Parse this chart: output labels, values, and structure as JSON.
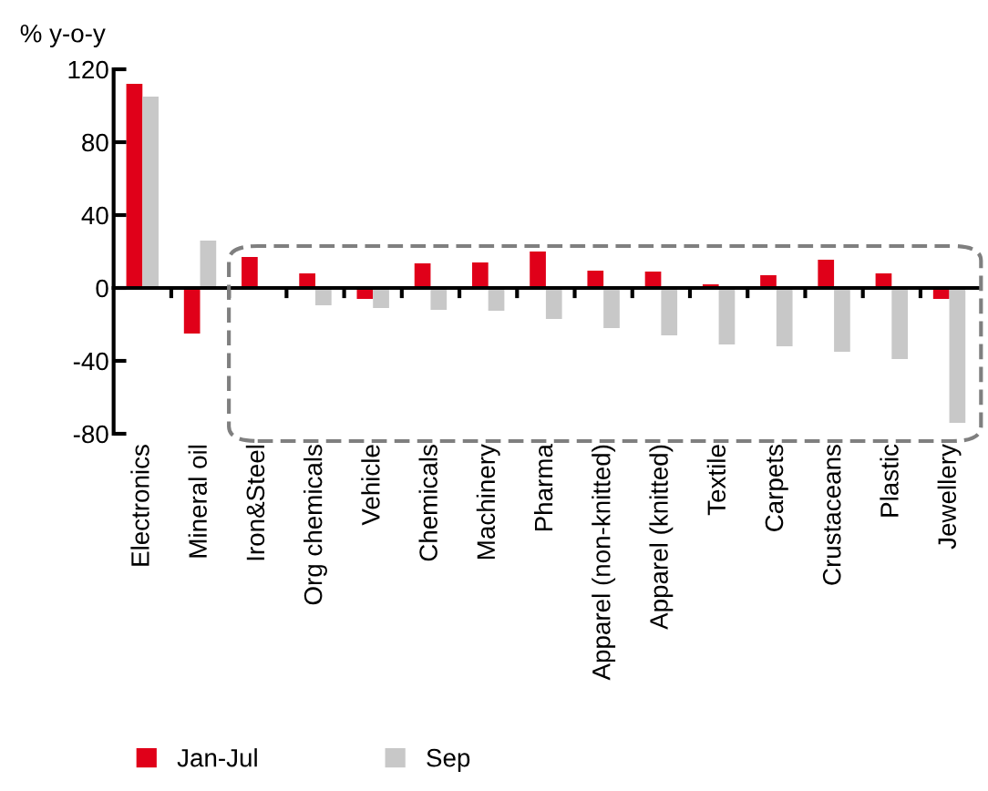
{
  "chart_data": {
    "type": "bar",
    "ylabel": "% y-o-y",
    "categories": [
      "Electronics",
      "Mineral oil",
      "Iron&Steel",
      "Org chemicals",
      "Vehicle",
      "Chemicals",
      "Machinery",
      "Pharma",
      "Apparel (non-knitted)",
      "Apparel (knitted)",
      "Textile",
      "Carpets",
      "Crustaceans",
      "Plastic",
      "Jewellery"
    ],
    "series": [
      {
        "name": "Jan-Jul",
        "color": "#e00019",
        "values": [
          112,
          -25,
          17,
          8,
          -6,
          13.5,
          14,
          20,
          9.5,
          9,
          2,
          7,
          15.5,
          8,
          -6
        ]
      },
      {
        "name": "Sep",
        "color": "#c8c8c8",
        "values": [
          105,
          26,
          0,
          -9.5,
          -11,
          -12,
          -12.5,
          -17,
          -22,
          -26,
          -31,
          -32,
          -35,
          -39,
          -74
        ]
      }
    ],
    "ylim": [
      -80,
      120
    ],
    "yticks": [
      -80,
      -40,
      0,
      40,
      80,
      120
    ],
    "legend": "bottom left"
  }
}
